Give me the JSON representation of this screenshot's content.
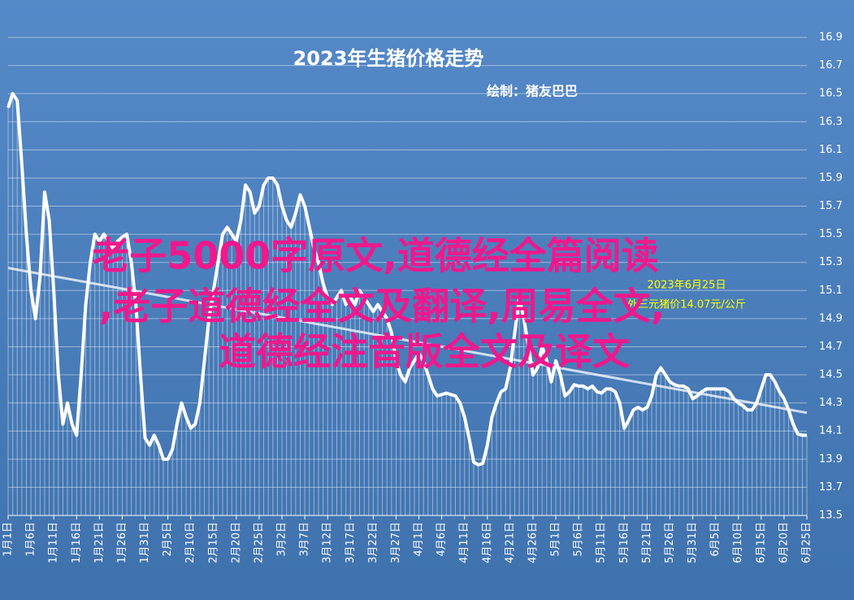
{
  "chart_data": {
    "type": "line",
    "title": "2023年生猪价格走势",
    "subtitle": "绘制：猪友巴巴",
    "annotation": [
      "2023年6月25日",
      "外三元猪价14.07元/公斤"
    ],
    "overlay_text": [
      "老子5000字原文,道德经全篇阅读",
      ",老子道德经全文及翻译,周易全文,",
      "道德经注音版全文及译文"
    ],
    "categories": [
      "1月1日",
      null,
      null,
      null,
      null,
      "1月6日",
      null,
      null,
      null,
      null,
      "1月11日",
      null,
      null,
      null,
      null,
      "1月16日",
      null,
      null,
      null,
      null,
      "1月21日",
      null,
      null,
      null,
      null,
      "1月26日",
      null,
      null,
      null,
      null,
      "1月31日",
      null,
      null,
      null,
      null,
      "2月5日",
      null,
      null,
      null,
      null,
      "2月10日",
      null,
      null,
      null,
      null,
      "2月15日",
      null,
      null,
      null,
      null,
      "2月20日",
      null,
      null,
      null,
      null,
      "2月25日",
      null,
      null,
      null,
      null,
      "3月2日",
      null,
      null,
      null,
      null,
      "3月7日",
      null,
      null,
      null,
      null,
      "3月12日",
      null,
      null,
      null,
      null,
      "3月17日",
      null,
      null,
      null,
      null,
      "3月22日",
      null,
      null,
      null,
      null,
      "3月27日",
      null,
      null,
      null,
      null,
      "4月1日",
      null,
      null,
      null,
      null,
      "4月6日",
      null,
      null,
      null,
      null,
      "4月11日",
      null,
      null,
      null,
      null,
      "4月16日",
      null,
      null,
      null,
      null,
      "4月21日",
      null,
      null,
      null,
      null,
      "4月26日",
      null,
      null,
      null,
      null,
      "5月1日",
      null,
      null,
      null,
      null,
      "5月6日",
      null,
      null,
      null,
      null,
      "5月11日",
      null,
      null,
      null,
      null,
      "5月16日",
      null,
      null,
      null,
      null,
      "5月21日",
      null,
      null,
      null,
      null,
      "5月26日",
      null,
      null,
      null,
      null,
      "5月31日",
      null,
      null,
      null,
      null,
      "6月5日",
      null,
      null,
      null,
      null,
      "6月10日",
      null,
      null,
      null,
      null,
      "6月15日",
      null,
      null,
      null,
      null,
      "6月20日",
      null,
      null,
      null,
      null,
      "6月25日"
    ],
    "values": [
      16.4,
      16.5,
      16.45,
      16.0,
      15.5,
      15.1,
      14.9,
      15.2,
      15.8,
      15.6,
      15.1,
      14.5,
      14.15,
      14.3,
      14.15,
      14.07,
      14.5,
      15.0,
      15.3,
      15.5,
      15.45,
      15.5,
      15.45,
      15.4,
      15.45,
      15.48,
      15.5,
      15.3,
      15.0,
      14.5,
      14.05,
      14.0,
      14.07,
      14.0,
      13.9,
      13.9,
      13.97,
      14.15,
      14.3,
      14.2,
      14.12,
      14.15,
      14.3,
      14.6,
      14.9,
      15.1,
      15.3,
      15.5,
      15.55,
      15.5,
      15.45,
      15.6,
      15.85,
      15.8,
      15.65,
      15.7,
      15.85,
      15.9,
      15.9,
      15.85,
      15.7,
      15.6,
      15.55,
      15.65,
      15.78,
      15.7,
      15.55,
      15.4,
      15.3,
      15.15,
      15.05,
      15.0,
      15.05,
      15.1,
      15.0,
      15.05,
      15.0,
      15.1,
      15.05,
      15.0,
      14.95,
      15.0,
      14.95,
      14.9,
      14.8,
      14.6,
      14.5,
      14.45,
      14.55,
      14.6,
      14.65,
      14.6,
      14.5,
      14.4,
      14.35,
      14.36,
      14.37,
      14.36,
      14.35,
      14.3,
      14.2,
      14.05,
      13.88,
      13.86,
      13.87,
      14.0,
      14.2,
      14.3,
      14.38,
      14.4,
      14.55,
      14.8,
      15.05,
      14.9,
      14.7,
      14.5,
      14.55,
      14.7,
      14.6,
      14.45,
      14.6,
      14.5,
      14.35,
      14.38,
      14.43,
      14.42,
      14.42,
      14.4,
      14.42,
      14.38,
      14.37,
      14.4,
      14.4,
      14.38,
      14.3,
      14.12,
      14.18,
      14.25,
      14.27,
      14.25,
      14.27,
      14.35,
      14.5,
      14.55,
      14.5,
      14.45,
      14.43,
      14.42,
      14.42,
      14.4,
      14.33,
      14.35,
      14.38,
      14.4,
      14.4,
      14.4,
      14.4,
      14.4,
      14.38,
      14.33,
      14.3,
      14.28,
      14.25,
      14.25,
      14.3,
      14.4,
      14.5,
      14.5,
      14.45,
      14.38,
      14.33,
      14.25,
      14.15,
      14.08,
      14.07,
      14.07
    ],
    "trendline": [
      15.26,
      14.23
    ],
    "color": "#ffffff",
    "ylim": [
      13.5,
      16.9
    ],
    "yticks": [
      13.5,
      13.7,
      13.9,
      14.1,
      14.3,
      14.5,
      14.7,
      14.9,
      15.1,
      15.3,
      15.5,
      15.7,
      15.9,
      16.1,
      16.3,
      16.5,
      16.7,
      16.9
    ],
    "grid": true
  }
}
